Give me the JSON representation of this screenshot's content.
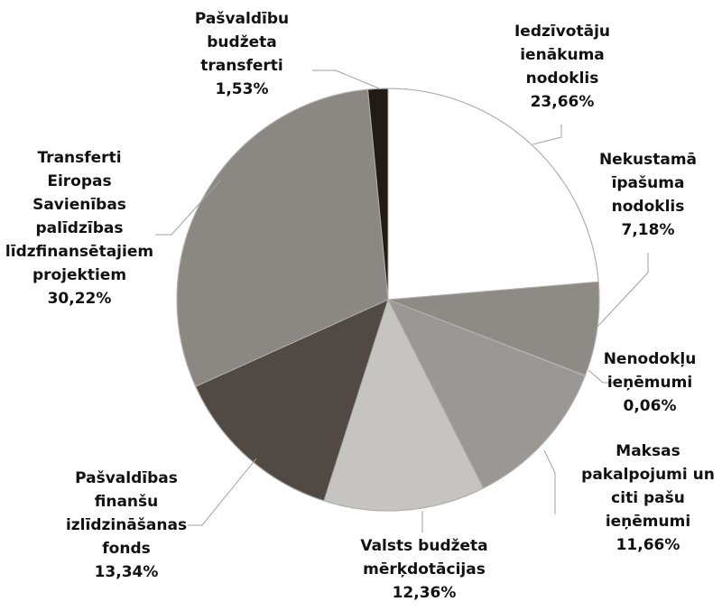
{
  "chart_data": {
    "type": "pie",
    "title": "",
    "slices": [
      {
        "lines": [
          "Iedzīvotāju",
          "ienākuma",
          "nodoklis"
        ],
        "pct": "23,66%",
        "value": 23.66,
        "color": "#ffffff"
      },
      {
        "lines": [
          "Nekustamā",
          "īpašuma",
          "nodoklis"
        ],
        "pct": "7,18%",
        "value": 7.18,
        "color": "#8e8b87"
      },
      {
        "lines": [
          "Nenodokļu",
          "ieņēmumi"
        ],
        "pct": "0,06%",
        "value": 0.06,
        "color": "#6a6662"
      },
      {
        "lines": [
          "Maksas",
          "pakalpojumi un",
          "citi pašu",
          "ieņēmumi"
        ],
        "pct": "11,66%",
        "value": 11.66,
        "color": "#9a9794"
      },
      {
        "lines": [
          "Valsts budžeta",
          "mērķdotācijas"
        ],
        "pct": "12,36%",
        "value": 12.36,
        "color": "#c6c4c1"
      },
      {
        "lines": [
          "Pašvaldības",
          "finanšu",
          "izlīdzināšanas",
          "fonds"
        ],
        "pct": "13,34%",
        "value": 13.34,
        "color": "#504944"
      },
      {
        "lines": [
          "Transferti",
          "Eiropas",
          "Savienības",
          "palīdzības",
          "līdzfinansētajiem",
          "projektiem"
        ],
        "pct": "30,22%",
        "value": 30.22,
        "color": "#8b8884"
      },
      {
        "lines": [
          "Pašvaldību",
          "budžeta",
          "transferti"
        ],
        "pct": "1,53%",
        "value": 1.53,
        "color": "#221a14"
      }
    ]
  }
}
